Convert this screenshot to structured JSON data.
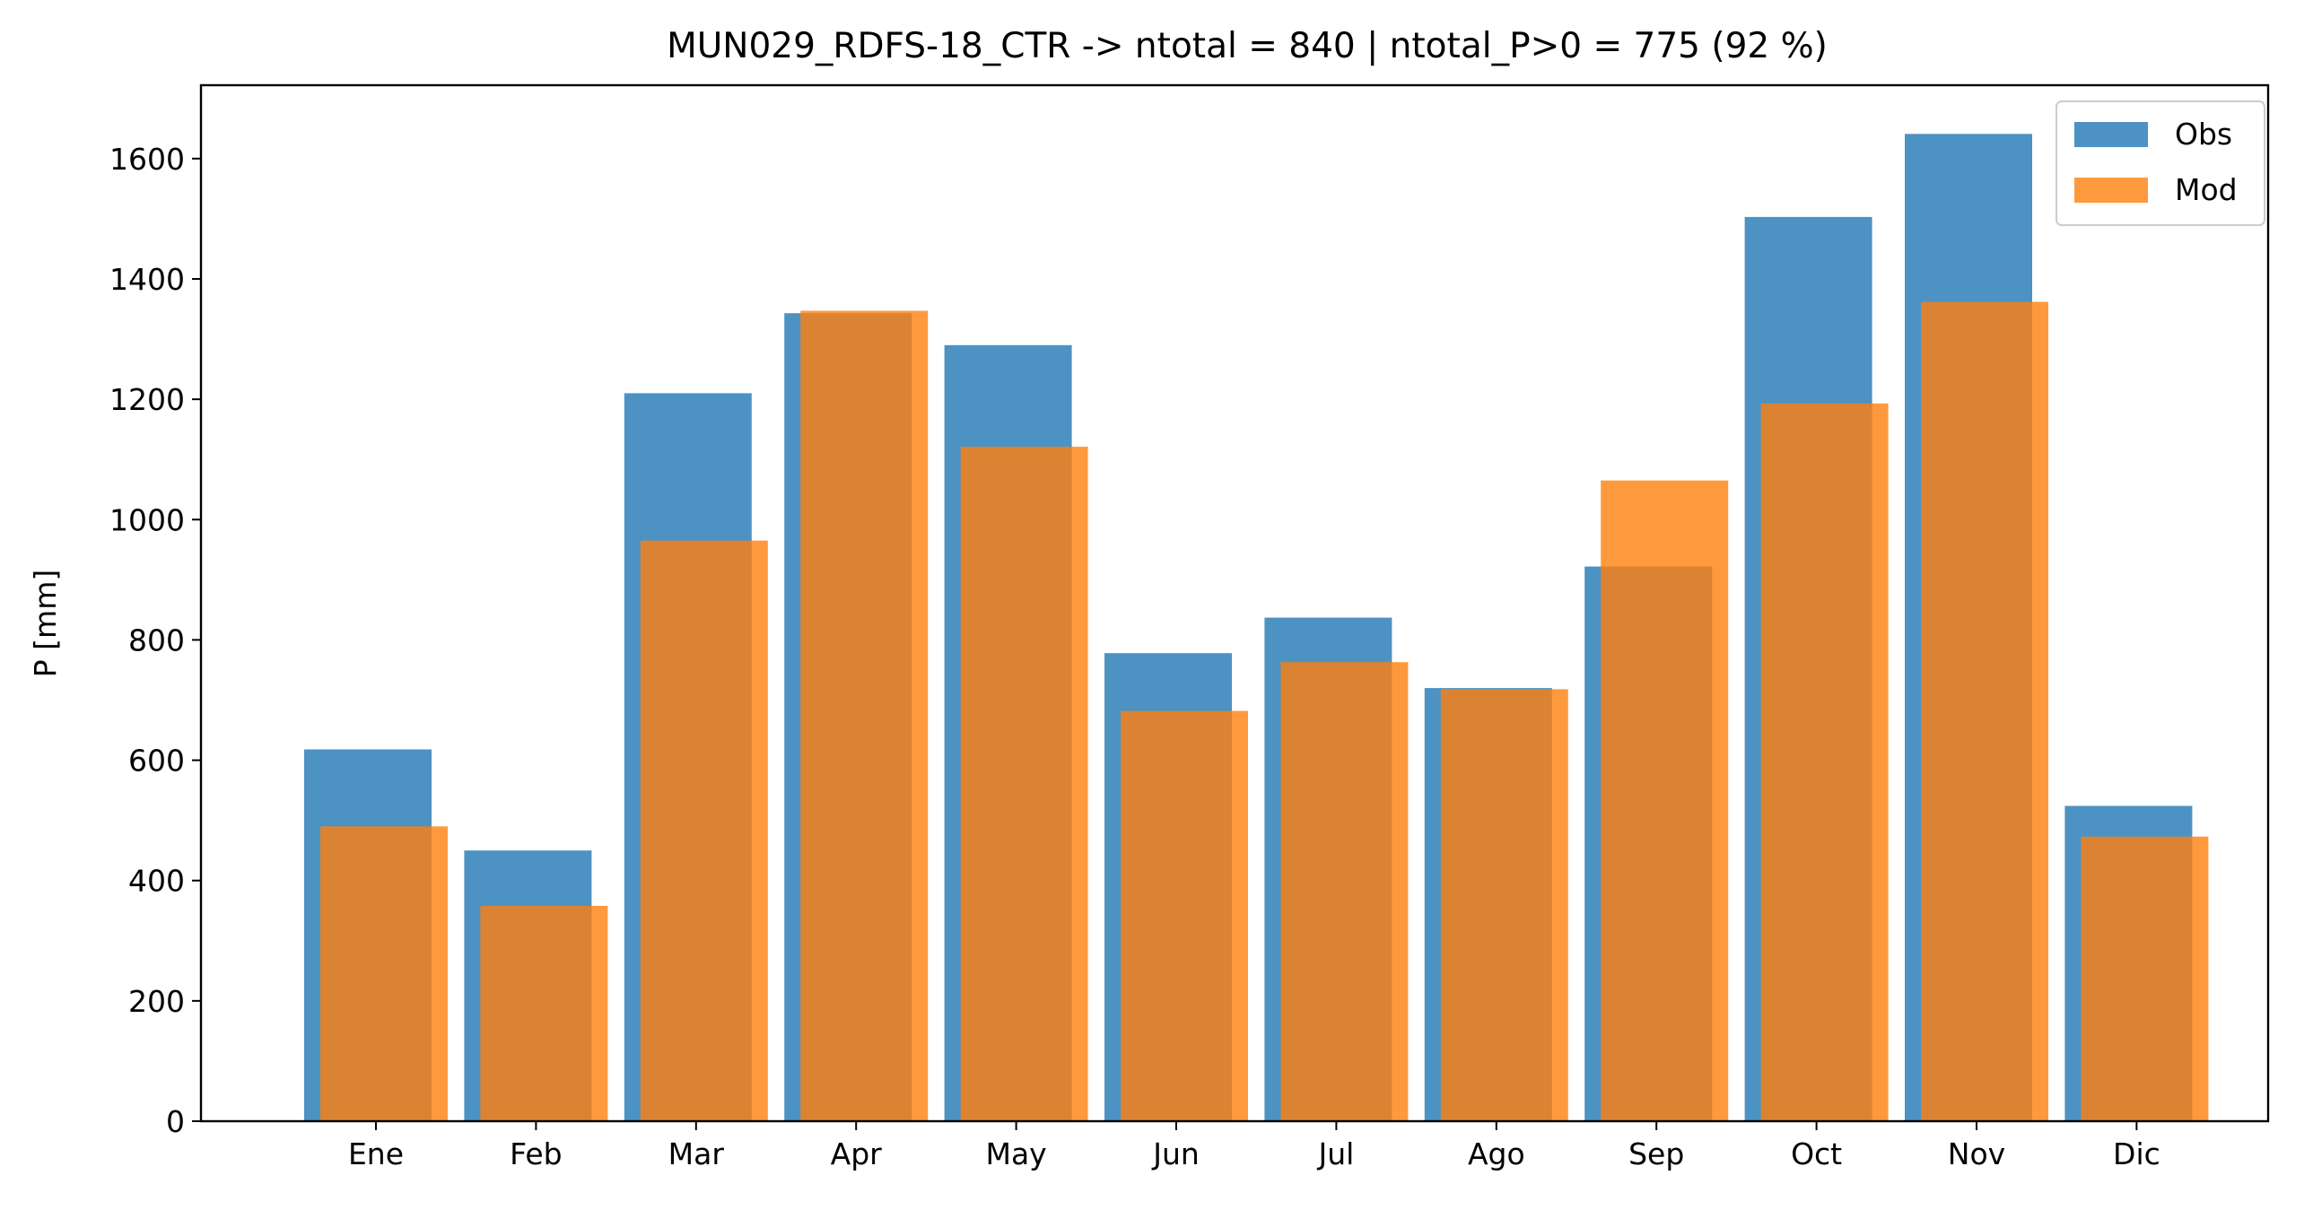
{
  "chart_data": {
    "type": "bar",
    "title": "MUN029_RDFS-18_CTR -> ntotal = 840 | ntotal_P>0 = 775 (92 %)",
    "xlabel": "",
    "ylabel": "P [mm]",
    "ylim": [
      0,
      1722
    ],
    "yticks": [
      0,
      200,
      400,
      600,
      800,
      1000,
      1200,
      1400,
      1600
    ],
    "grid": false,
    "legend_position": "top-right",
    "categories": [
      "Ene",
      "Feb",
      "Mar",
      "Apr",
      "May",
      "Jun",
      "Jul",
      "Ago",
      "Sep",
      "Oct",
      "Nov",
      "Dic"
    ],
    "series": [
      {
        "name": "Obs",
        "color": "#1f77b4",
        "values": [
          618,
          450,
          1210,
          1343,
          1290,
          778,
          837,
          720,
          922,
          1503,
          1641,
          524
        ]
      },
      {
        "name": "Mod",
        "color": "#ff7f0e",
        "values": [
          490,
          358,
          965,
          1347,
          1121,
          682,
          763,
          718,
          1065,
          1193,
          1362,
          473
        ]
      }
    ]
  }
}
